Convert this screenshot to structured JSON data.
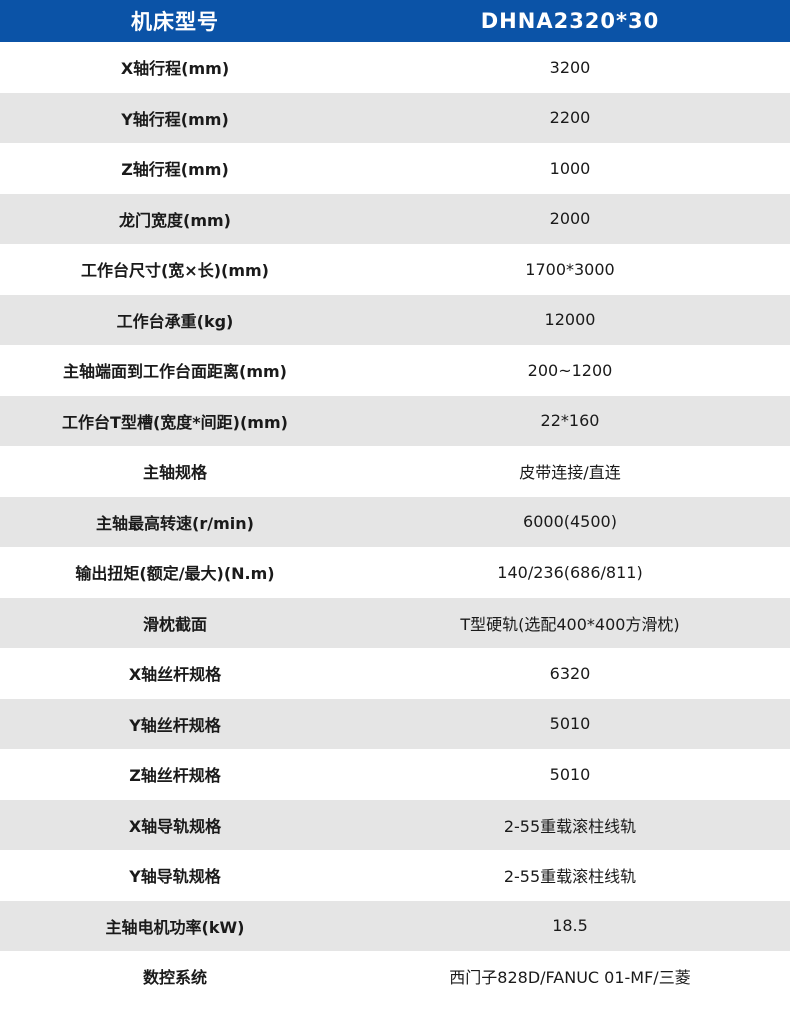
{
  "header": {
    "label": "机床型号",
    "value": "DHNA2320*30"
  },
  "rows": [
    {
      "label": "X轴行程(mm)",
      "value": "3200"
    },
    {
      "label": "Y轴行程(mm)",
      "value": "2200"
    },
    {
      "label": "Z轴行程(mm)",
      "value": "1000"
    },
    {
      "label": "龙门宽度(mm)",
      "value": "2000"
    },
    {
      "label": "工作台尺寸(宽×长)(mm)",
      "value": "1700*3000"
    },
    {
      "label": "工作台承重(kg)",
      "value": "12000"
    },
    {
      "label": "主轴端面到工作台面距离(mm)",
      "value": "200~1200"
    },
    {
      "label": "工作台T型槽(宽度*间距)(mm)",
      "value": "22*160"
    },
    {
      "label": "主轴规格",
      "value": "皮带连接/直连"
    },
    {
      "label": "主轴最高转速(r/min)",
      "value": "6000(4500)"
    },
    {
      "label": "输出扭矩(额定/最大)(N.m)",
      "value": "140/236(686/811)"
    },
    {
      "label": "滑枕截面",
      "value": "T型硬轨(选配400*400方滑枕)"
    },
    {
      "label": "X轴丝杆规格",
      "value": "6320"
    },
    {
      "label": "Y轴丝杆规格",
      "value": "5010"
    },
    {
      "label": "Z轴丝杆规格",
      "value": "5010"
    },
    {
      "label": "X轴导轨规格",
      "value": "2-55重载滚柱线轨"
    },
    {
      "label": "Y轴导轨规格",
      "value": "2-55重载滚柱线轨"
    },
    {
      "label": "主轴电机功率(kW)",
      "value": "18.5"
    },
    {
      "label": "数控系统",
      "value": "西门子828D/FANUC 01-MF/三菱"
    }
  ]
}
